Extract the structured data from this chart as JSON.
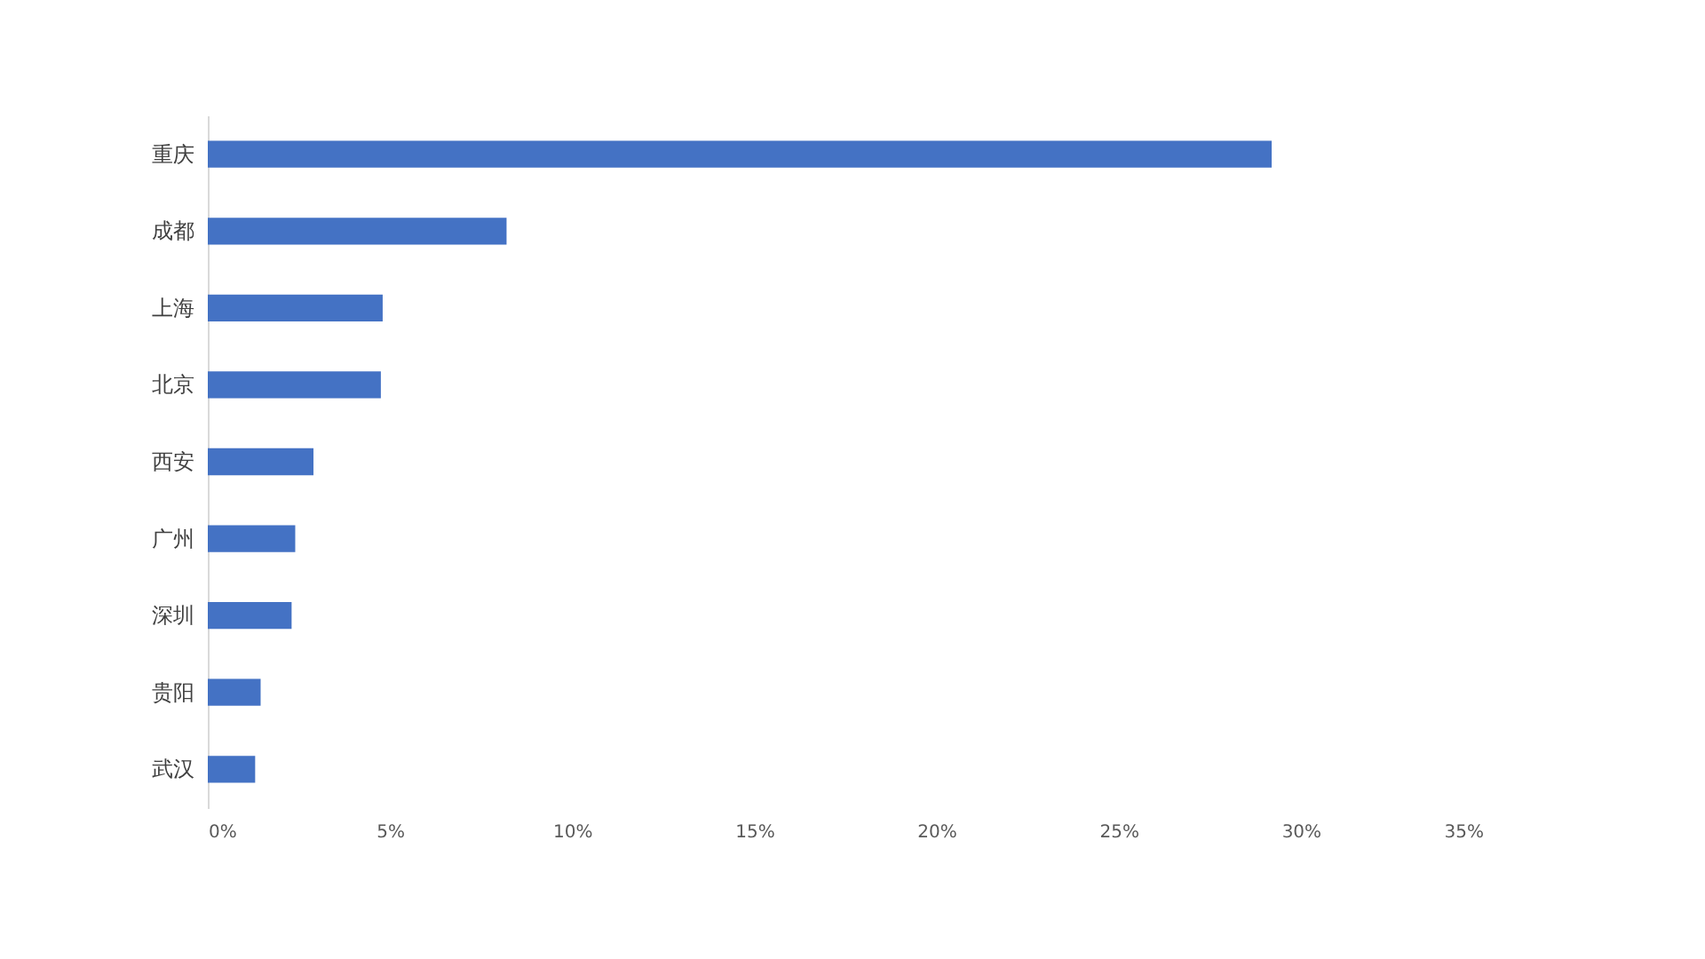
{
  "chart_data": {
    "type": "bar",
    "orientation": "horizontal",
    "categories": [
      "重庆",
      "成都",
      "上海",
      "北京",
      "西安",
      "广州",
      "深圳",
      "贵阳",
      "武汉"
    ],
    "values": [
      29.2,
      8.2,
      4.8,
      4.75,
      2.9,
      2.4,
      2.3,
      1.45,
      1.3
    ],
    "color": "#4472c4",
    "xlim": [
      0,
      35
    ],
    "xticks": [
      {
        "value": 0,
        "label": "0%"
      },
      {
        "value": 5,
        "label": "5%"
      },
      {
        "value": 10,
        "label": "10%"
      },
      {
        "value": 15,
        "label": "15%"
      },
      {
        "value": 20,
        "label": "20%"
      },
      {
        "value": 25,
        "label": "25%"
      },
      {
        "value": 30,
        "label": "30%"
      },
      {
        "value": 35,
        "label": "35%"
      }
    ],
    "grid": false
  }
}
